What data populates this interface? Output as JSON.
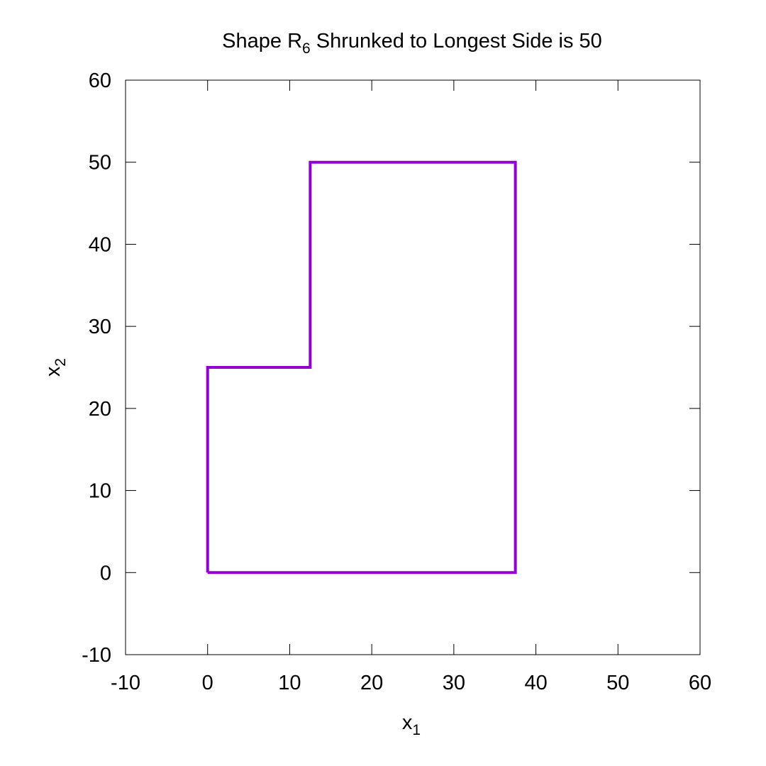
{
  "chart_data": {
    "type": "line",
    "title": {
      "prefix": "Shape R",
      "subscript": "6",
      "suffix": " Shrunked to Longest Side is 50"
    },
    "xlabel": {
      "base": "x",
      "subscript": "1"
    },
    "ylabel": {
      "base": "x",
      "subscript": "2"
    },
    "xlim": [
      -10,
      60
    ],
    "ylim": [
      -10,
      60
    ],
    "xticks": [
      -10,
      0,
      10,
      20,
      30,
      40,
      50,
      60
    ],
    "yticks": [
      -10,
      0,
      10,
      20,
      30,
      40,
      50,
      60
    ],
    "xtick_labels": [
      "-10",
      "0",
      "10",
      "20",
      "30",
      "40",
      "50",
      "60"
    ],
    "ytick_labels": [
      "-10",
      "0",
      "10",
      "20",
      "30",
      "40",
      "50",
      "60"
    ],
    "grid": false,
    "legend": "none",
    "series": [
      {
        "color": "#9400d3",
        "x": [
          0,
          37.5,
          37.5,
          12.5,
          12.5,
          0,
          0
        ],
        "y": [
          0,
          0,
          50,
          50,
          25,
          25,
          0
        ]
      }
    ]
  }
}
